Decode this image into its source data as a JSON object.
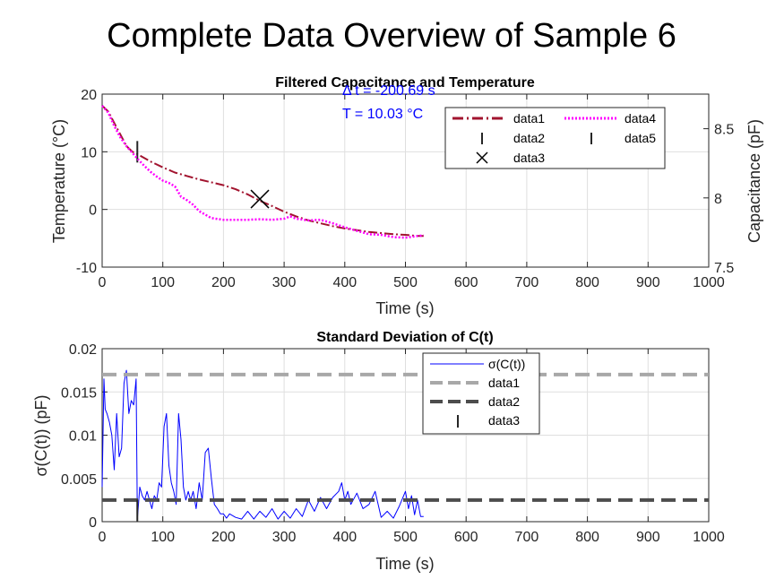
{
  "figure_title": "Complete Data Overview of Sample 6",
  "chart_data": [
    {
      "type": "line",
      "title": "Filtered Capacitance and Temperature",
      "xlabel": "Time (s)",
      "ylabel": "Temperature (°C)",
      "y2label": "Capacitance (pF)",
      "xlim": [
        0,
        1000
      ],
      "ylim": [
        -10,
        20
      ],
      "y2lim": [
        7.5,
        8.75
      ],
      "xticks": [
        0,
        100,
        200,
        300,
        400,
        500,
        600,
        700,
        800,
        900,
        1000
      ],
      "yticks": [
        -10,
        0,
        10,
        20
      ],
      "y2ticks": [
        7.5,
        8,
        8.5
      ],
      "xtick_labels": [
        "0",
        "100",
        "200",
        "300",
        "400",
        "500",
        "600",
        "700",
        "800",
        "900",
        "1000"
      ],
      "ytick_labels": [
        "-10",
        "0",
        "10",
        "20"
      ],
      "y2tick_labels": [
        "7.5",
        "8",
        "8.5"
      ],
      "grid": true,
      "annotations": [
        "Δ t = -200.69 s",
        "T = 10.03 °C"
      ],
      "series": [
        {
          "name": "data1",
          "axis": "left",
          "style": "dashdot",
          "color": "#a2142f",
          "x": [
            0,
            10,
            20,
            30,
            40,
            50,
            60,
            80,
            100,
            120,
            140,
            160,
            180,
            200,
            220,
            240,
            260,
            280,
            300,
            320,
            340,
            360,
            380,
            400,
            420,
            440,
            460,
            480,
            500,
            520,
            530
          ],
          "y": [
            18,
            17,
            15,
            13,
            11,
            10,
            9.5,
            8.3,
            7.3,
            6.4,
            5.8,
            5.2,
            4.7,
            4.2,
            3.5,
            2.6,
            1.5,
            0.6,
            -0.4,
            -1.2,
            -1.9,
            -2.4,
            -2.9,
            -3.3,
            -3.6,
            -3.9,
            -4.1,
            -4.3,
            -4.4,
            -4.6,
            -4.6
          ]
        },
        {
          "name": "data2",
          "axis": "left",
          "marker": "|",
          "color": "#262626",
          "x": [
            58
          ],
          "y": [
            10
          ]
        },
        {
          "name": "data3",
          "axis": "left",
          "marker": "x",
          "color": "#000000",
          "x": [
            260
          ],
          "y": [
            1.8
          ]
        },
        {
          "name": "data4",
          "axis": "left",
          "style": "dotted",
          "color": "#ff00ff",
          "x": [
            0,
            10,
            20,
            30,
            40,
            50,
            60,
            70,
            80,
            90,
            100,
            110,
            120,
            130,
            140,
            150,
            160,
            180,
            200,
            220,
            240,
            260,
            280,
            300,
            310,
            320,
            340,
            360,
            380,
            400,
            420,
            440,
            460,
            480,
            500,
            520,
            530
          ],
          "y": [
            18,
            16.8,
            14.5,
            12.5,
            11,
            9.8,
            8.6,
            7.5,
            6.5,
            5.7,
            5,
            4.6,
            4,
            2.2,
            1.6,
            0.8,
            -0.3,
            -1.5,
            -1.8,
            -1.8,
            -1.8,
            -1.7,
            -1.8,
            -1.6,
            -1.2,
            -1.6,
            -1.9,
            -1.8,
            -2.4,
            -3.1,
            -3.7,
            -4.3,
            -4.4,
            -4.8,
            -4.9,
            -4.6,
            -4.5
          ]
        },
        {
          "name": "data5",
          "axis": "right",
          "marker": "|",
          "color": "#262626",
          "x": [],
          "y": []
        }
      ],
      "legend": [
        "data1",
        "data4",
        "data2",
        "data5",
        "data3"
      ]
    },
    {
      "type": "line",
      "title": "Standard Deviation of C(t)",
      "xlabel": "Time (s)",
      "ylabel": "σ(C(t)) (pF)",
      "xlim": [
        0,
        1000
      ],
      "ylim": [
        0,
        0.02
      ],
      "xticks": [
        0,
        100,
        200,
        300,
        400,
        500,
        600,
        700,
        800,
        900,
        1000
      ],
      "yticks": [
        0,
        0.005,
        0.01,
        0.015,
        0.02
      ],
      "xtick_labels": [
        "0",
        "100",
        "200",
        "300",
        "400",
        "500",
        "600",
        "700",
        "800",
        "900",
        "1000"
      ],
      "ytick_labels": [
        "0",
        "0.005",
        "0.01",
        "0.015",
        "0.02"
      ],
      "grid": true,
      "series": [
        {
          "name": "σ(C(t))",
          "style": "solid",
          "color": "#0000ff",
          "x": [
            0,
            3,
            5,
            8,
            12,
            16,
            20,
            24,
            28,
            32,
            36,
            40,
            44,
            48,
            52,
            56,
            58,
            62,
            66,
            70,
            74,
            78,
            82,
            86,
            90,
            94,
            98,
            102,
            106,
            110,
            114,
            118,
            122,
            126,
            130,
            134,
            138,
            142,
            146,
            150,
            155,
            160,
            165,
            170,
            175,
            180,
            185,
            190,
            195,
            200,
            205,
            210,
            220,
            230,
            240,
            250,
            260,
            270,
            280,
            290,
            300,
            310,
            320,
            330,
            340,
            350,
            360,
            370,
            380,
            390,
            395,
            400,
            405,
            410,
            420,
            430,
            440,
            450,
            460,
            470,
            480,
            490,
            500,
            505,
            510,
            515,
            520,
            525,
            530
          ],
          "y": [
            0.004,
            0.0165,
            0.013,
            0.0125,
            0.0115,
            0.01,
            0.006,
            0.0125,
            0.0075,
            0.0085,
            0.016,
            0.0175,
            0.0125,
            0.014,
            0.0135,
            0.0165,
            0.0003,
            0.004,
            0.003,
            0.0025,
            0.0035,
            0.0025,
            0.0015,
            0.003,
            0.0025,
            0.0045,
            0.004,
            0.011,
            0.0125,
            0.0065,
            0.0045,
            0.0035,
            0.002,
            0.0125,
            0.0095,
            0.004,
            0.0025,
            0.0035,
            0.0025,
            0.0035,
            0.0015,
            0.0045,
            0.0025,
            0.008,
            0.0085,
            0.005,
            0.002,
            0.0015,
            0.0009,
            0.0009,
            0.0004,
            0.0009,
            0.0005,
            0.0003,
            0.0012,
            0.0003,
            0.0012,
            0.0005,
            0.0015,
            0.0003,
            0.0012,
            0.0004,
            0.0015,
            0.0006,
            0.0025,
            0.0012,
            0.0028,
            0.0015,
            0.0028,
            0.0035,
            0.0045,
            0.0025,
            0.0035,
            0.002,
            0.0033,
            0.0015,
            0.002,
            0.0035,
            0.0005,
            0.0012,
            0.0004,
            0.0018,
            0.0035,
            0.0015,
            0.003,
            0.0008,
            0.0025,
            0.0006,
            0.0006
          ]
        },
        {
          "name": "data1",
          "style": "dashed",
          "color": "#a8a8a8",
          "x": [
            0,
            1000
          ],
          "y": [
            0.017,
            0.017
          ]
        },
        {
          "name": "data2",
          "style": "dashed",
          "color": "#4d4d4d",
          "x": [
            0,
            1000
          ],
          "y": [
            0.0025,
            0.0025
          ]
        },
        {
          "name": "data3",
          "marker": "|",
          "color": "#262626",
          "x": [
            58
          ],
          "y": [
            0.0013
          ]
        }
      ],
      "legend": [
        "σ(C(t))",
        "data1",
        "data2",
        "data3"
      ]
    }
  ]
}
